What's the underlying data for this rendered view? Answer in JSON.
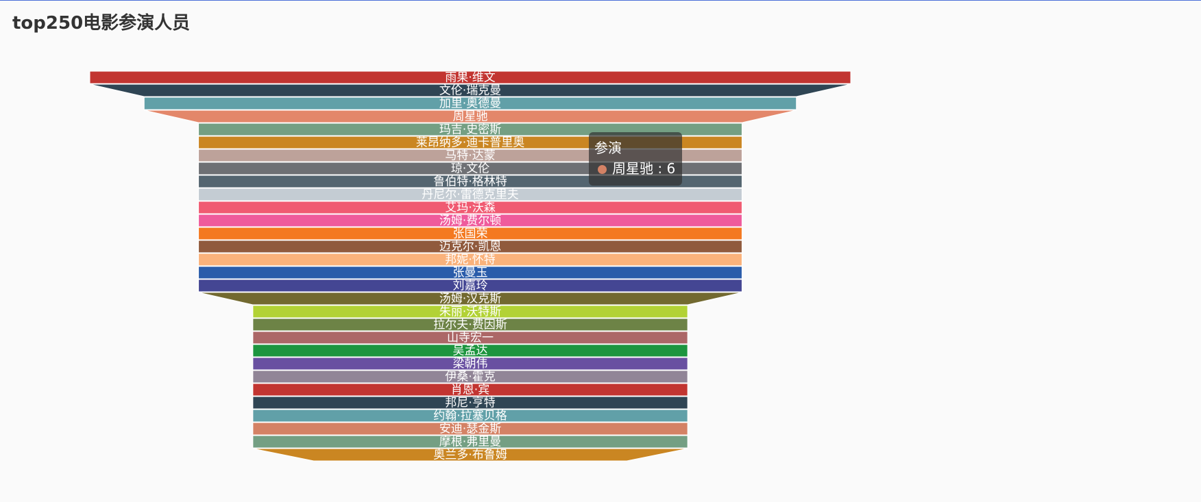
{
  "title": "top250电影参演人员",
  "tooltip": {
    "series_name": "参演",
    "item_name": "周星驰",
    "item_value": 6,
    "item_color": "#d48265"
  },
  "chart_data": {
    "type": "funnel",
    "series_name": "参演",
    "sort": "descending",
    "max_value": 7,
    "items": [
      {
        "name": "雨果·维文",
        "value": 7,
        "color": "#c23531"
      },
      {
        "name": "文伦·瑞克曼",
        "value": 7,
        "color": "#2f4554"
      },
      {
        "name": "加里·奥德曼",
        "value": 6,
        "color": "#61a0a8"
      },
      {
        "name": "周星驰",
        "value": 6,
        "color": "#e3876a"
      },
      {
        "name": "玛吉·史密斯",
        "value": 5,
        "color": "#749f83"
      },
      {
        "name": "莱昂纳多·迪卡普里奥",
        "value": 5,
        "color": "#ca8622"
      },
      {
        "name": "马特·达蒙",
        "value": 5,
        "color": "#bda29a"
      },
      {
        "name": "琼·文伦",
        "value": 5,
        "color": "#6e7074"
      },
      {
        "name": "鲁伯特·格林特",
        "value": 5,
        "color": "#546570"
      },
      {
        "name": "丹尼尔·雷德克里夫",
        "value": 5,
        "color": "#c4ccd3"
      },
      {
        "name": "艾玛·沃森",
        "value": 5,
        "color": "#f05b72"
      },
      {
        "name": "汤姆·费尔顿",
        "value": 5,
        "color": "#ef5b9c"
      },
      {
        "name": "张国荣",
        "value": 5,
        "color": "#f47920"
      },
      {
        "name": "迈克尔·凯恩",
        "value": 5,
        "color": "#905a3d"
      },
      {
        "name": "邦妮·怀特",
        "value": 5,
        "color": "#fab27b"
      },
      {
        "name": "张曼玉",
        "value": 5,
        "color": "#2a5caa"
      },
      {
        "name": "刘嘉玲",
        "value": 5,
        "color": "#444693"
      },
      {
        "name": "汤姆·汉克斯",
        "value": 5,
        "color": "#726930"
      },
      {
        "name": "朱丽·沃特斯",
        "value": 4,
        "color": "#b2d235"
      },
      {
        "name": "拉尔夫·费因斯",
        "value": 4,
        "color": "#6d8346"
      },
      {
        "name": "山寺宏一",
        "value": 4,
        "color": "#ac6767"
      },
      {
        "name": "吴孟达",
        "value": 4,
        "color": "#1d953f"
      },
      {
        "name": "梁朝伟",
        "value": 4,
        "color": "#6950a1"
      },
      {
        "name": "伊桑·霍克",
        "value": 4,
        "color": "#918597"
      },
      {
        "name": "肖恩·宾",
        "value": 4,
        "color": "#c23531"
      },
      {
        "name": "邦尼·亨特",
        "value": 4,
        "color": "#2f4554"
      },
      {
        "name": "约翰·拉塞贝格",
        "value": 4,
        "color": "#61a0a8"
      },
      {
        "name": "安迪·瑟金斯",
        "value": 4,
        "color": "#d48265"
      },
      {
        "name": "摩根·弗里曼",
        "value": 4,
        "color": "#749f83"
      },
      {
        "name": "奥兰多·布鲁姆",
        "value": 4,
        "color": "#ca8622"
      }
    ]
  }
}
